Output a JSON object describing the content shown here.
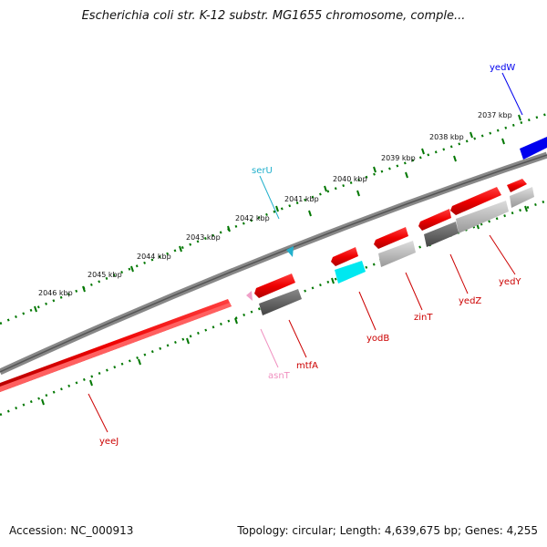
{
  "title": "Escherichia coli str. K-12 substr. MG1655 chromosome, comple...",
  "footer": {
    "accession": "Accession: NC_000913",
    "summary": "Topology: circular; Length: 4,639,675 bp; Genes: 4,255"
  },
  "colors": {
    "cds_forward": "#ff0000",
    "cds_reverse_shadow": "#555555",
    "trna_serU": "#22b0cc",
    "trna_asnT": "#f0a0c8",
    "gene_yedW": "#0000ff",
    "rrna_cyan": "#00ffff",
    "tick": "#007700",
    "backbone": "#777777"
  },
  "ruler": {
    "labels": [
      "2037 kbp",
      "2038 kbp",
      "2039 kbp",
      "2040 kbp",
      "2041 kbp",
      "2042 kbp",
      "2043 kbp",
      "2044 kbp",
      "2045 kbp",
      "2046 kbp"
    ]
  },
  "genes": [
    {
      "name": "yedW",
      "color": "#0000ff"
    },
    {
      "name": "serU",
      "color": "#22b0cc"
    },
    {
      "name": "yedY",
      "color": "#cc0000"
    },
    {
      "name": "yedZ",
      "color": "#cc0000"
    },
    {
      "name": "zinT",
      "color": "#cc0000"
    },
    {
      "name": "yodB",
      "color": "#cc0000"
    },
    {
      "name": "mtfA",
      "color": "#cc0000"
    },
    {
      "name": "asnT",
      "color": "#f090c0"
    },
    {
      "name": "yeeJ",
      "color": "#cc0000"
    }
  ]
}
